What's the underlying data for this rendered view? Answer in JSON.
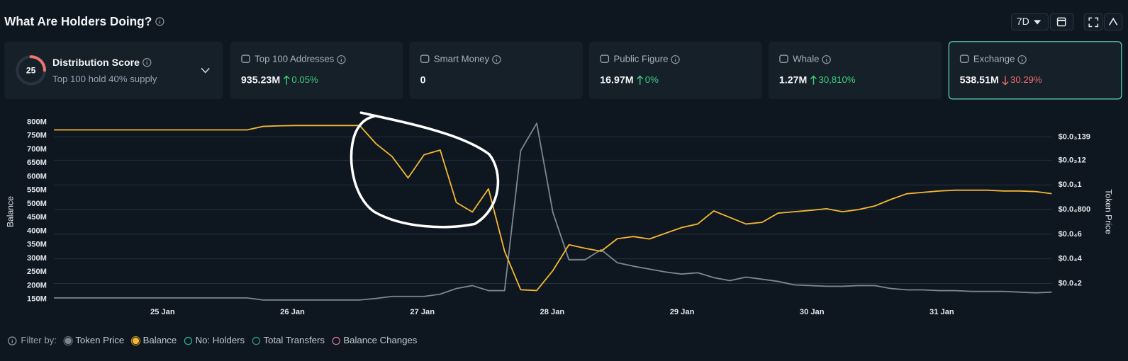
{
  "header": {
    "title": "What Are Holders Doing?",
    "timeframe": "7D"
  },
  "distribution": {
    "score": 25,
    "label": "Distribution Score",
    "subtitle": "Top 100 hold 40% supply"
  },
  "cards": [
    {
      "label": "Top 100 Addresses",
      "value": "935.23M",
      "change": "0.05%",
      "direction": "up"
    },
    {
      "label": "Smart Money",
      "value": "0"
    },
    {
      "label": "Public Figure",
      "value": "16.97M",
      "change": "0%",
      "direction": "up"
    },
    {
      "label": "Whale",
      "value": "1.27M",
      "change": "30,810%",
      "direction": "up"
    },
    {
      "label": "Exchange",
      "value": "538.51M",
      "change": "30.29%",
      "direction": "down",
      "selected": true
    }
  ],
  "chart_data": {
    "type": "line",
    "ylabel": "Balance",
    "y2label": "Token Price",
    "grid": true,
    "xlim": [
      0,
      62
    ],
    "xticks": [
      {
        "value": 6.75,
        "label": "25 Jan"
      },
      {
        "value": 14.82,
        "label": "26 Jan"
      },
      {
        "value": 22.89,
        "label": "27 Jan"
      },
      {
        "value": 30.96,
        "label": "28 Jan"
      },
      {
        "value": 39.03,
        "label": "29 Jan"
      },
      {
        "value": 47.1,
        "label": "30 Jan"
      },
      {
        "value": 55.17,
        "label": "31 Jan"
      }
    ],
    "ylim": [
      131600000,
      821000000
    ],
    "yticks": [
      {
        "value": 800000000,
        "label": "800M"
      },
      {
        "value": 750000000,
        "label": "750M"
      },
      {
        "value": 700000000,
        "label": "700M"
      },
      {
        "value": 650000000,
        "label": "650M"
      },
      {
        "value": 600000000,
        "label": "600M"
      },
      {
        "value": 550000000,
        "label": "550M"
      },
      {
        "value": 500000000,
        "label": "500M"
      },
      {
        "value": 450000000,
        "label": "450M"
      },
      {
        "value": 400000000,
        "label": "400M"
      },
      {
        "value": 350000000,
        "label": "350M"
      },
      {
        "value": 300000000,
        "label": "300M"
      },
      {
        "value": 250000000,
        "label": "250M"
      },
      {
        "value": 200000000,
        "label": "200M"
      },
      {
        "value": 150000000,
        "label": "150M"
      }
    ],
    "y2lim": [
      3.1e-06,
      0.0001557
    ],
    "y2ticks": [
      {
        "value": 0.000139,
        "label": "$0.0₃139"
      },
      {
        "value": 0.00012,
        "label": "$0.0₃12"
      },
      {
        "value": 0.0001,
        "label": "$0.0₃1"
      },
      {
        "value": 8e-05,
        "label": "$0.0₄800"
      },
      {
        "value": 6e-05,
        "label": "$0.0₄6"
      },
      {
        "value": 4e-05,
        "label": "$0.0₄4"
      },
      {
        "value": 2e-05,
        "label": "$0.0₄2"
      }
    ],
    "series": [
      {
        "name": "Token Price",
        "color": "#7d8690",
        "axis": "y2",
        "values": [
          8.3e-06,
          8.3e-06,
          8.3e-06,
          8.3e-06,
          8.3e-06,
          8.3e-06,
          8.3e-06,
          8.3e-06,
          8.3e-06,
          8.3e-06,
          8.3e-06,
          8.3e-06,
          8.3e-06,
          6.6e-06,
          6.6e-06,
          6.6e-06,
          6.6e-06,
          6.6e-06,
          6.6e-06,
          6.6e-06,
          7.8e-06,
          9.5e-06,
          9.5e-06,
          9.5e-06,
          1.13e-05,
          1.59e-05,
          1.83e-05,
          1.42e-05,
          1.42e-05,
          0.0001278,
          0.00015,
          7.77e-05,
          3.92e-05,
          3.92e-05,
          4.74e-05,
          3.69e-05,
          3.4e-05,
          3.17e-05,
          2.93e-05,
          2.76e-05,
          2.87e-05,
          2.47e-05,
          2.23e-05,
          2.52e-05,
          2.35e-05,
          2.17e-05,
          1.88e-05,
          1.83e-05,
          1.77e-05,
          1.77e-05,
          1.83e-05,
          1.83e-05,
          1.59e-05,
          1.48e-05,
          1.48e-05,
          1.42e-05,
          1.42e-05,
          1.36e-05,
          1.36e-05,
          1.36e-05,
          1.3e-05,
          1.24e-05,
          1.3e-05
        ]
      },
      {
        "name": "Balance",
        "color": "#f4b731",
        "values": [
          771000000,
          771000000,
          771000000,
          771000000,
          771000000,
          771000000,
          771000000,
          771000000,
          771000000,
          771000000,
          771000000,
          771000000,
          771000000,
          784000000,
          786000000,
          787000000,
          787000000,
          787000000,
          787000000,
          787000000,
          721000000,
          674000000,
          595000000,
          680000000,
          697000000,
          505000000,
          470000000,
          555000000,
          326000000,
          185000000,
          182000000,
          255000000,
          350000000,
          337000000,
          326000000,
          372000000,
          380000000,
          371000000,
          392000000,
          413000000,
          426000000,
          474000000,
          450000000,
          426000000,
          432000000,
          466000000,
          471000000,
          476000000,
          482000000,
          471000000,
          479000000,
          492000000,
          516000000,
          537000000,
          542000000,
          547000000,
          550000000,
          550000000,
          550000000,
          547000000,
          547000000,
          545000000,
          537000000
        ]
      }
    ]
  },
  "filters": {
    "label": "Filter by:",
    "others": [
      {
        "name": "No: Holders",
        "color": "#2bb5a0"
      },
      {
        "name": "Total Transfers",
        "color": "#2a9d8f"
      },
      {
        "name": "Balance Changes",
        "color": "#d9779a"
      }
    ]
  }
}
